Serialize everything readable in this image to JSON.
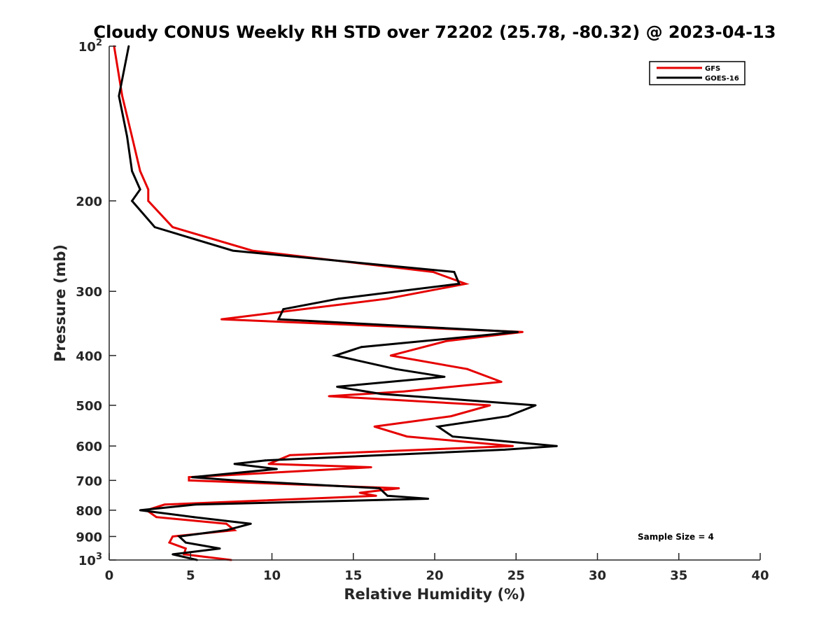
{
  "chart_data": {
    "type": "line",
    "title": "Cloudy CONUS Weekly RH STD over 72202 (25.78, -80.32) @ 2023-04-13",
    "xlabel": "Relative Humidity (%)",
    "ylabel": "Pressure (mb)",
    "xlim": [
      0,
      40
    ],
    "ylim": [
      100,
      1000
    ],
    "y_scale": "log",
    "y_reversed": true,
    "grid": false,
    "legend_placement": "top-right",
    "x_ticks": [
      "0",
      "5",
      "10",
      "15",
      "20",
      "25",
      "30",
      "35",
      "40"
    ],
    "y_ticks": [
      {
        "value": 100,
        "base": "10",
        "exp": "2"
      },
      {
        "value": 200,
        "label": "200"
      },
      {
        "value": 300,
        "label": "300"
      },
      {
        "value": 400,
        "label": "400"
      },
      {
        "value": 500,
        "label": "500"
      },
      {
        "value": 600,
        "label": "600"
      },
      {
        "value": 700,
        "label": "700"
      },
      {
        "value": 800,
        "label": "800"
      },
      {
        "value": 900,
        "label": "900"
      },
      {
        "value": 1000,
        "base": "10",
        "exp": "3"
      }
    ],
    "series": [
      {
        "name": "GFS",
        "color": "#e60000",
        "points": [
          [
            0.3,
            100
          ],
          [
            0.8,
            125
          ],
          [
            1.4,
            150
          ],
          [
            1.9,
            175
          ],
          [
            2.4,
            190
          ],
          [
            2.4,
            200
          ],
          [
            3.9,
            225
          ],
          [
            8.8,
            250
          ],
          [
            19.9,
            275
          ],
          [
            21.9,
            290
          ],
          [
            17.1,
            310
          ],
          [
            6.9,
            340
          ],
          [
            25.4,
            360
          ],
          [
            20.7,
            375
          ],
          [
            17.3,
            400
          ],
          [
            22.0,
            425
          ],
          [
            24.1,
            450
          ],
          [
            18.1,
            470
          ],
          [
            13.5,
            480
          ],
          [
            23.4,
            500
          ],
          [
            21.0,
            525
          ],
          [
            16.3,
            550
          ],
          [
            18.3,
            575
          ],
          [
            24.8,
            600
          ],
          [
            11.1,
            625
          ],
          [
            9.8,
            650
          ],
          [
            16.1,
            660
          ],
          [
            4.9,
            690
          ],
          [
            4.9,
            700
          ],
          [
            17.8,
            725
          ],
          [
            15.4,
            740
          ],
          [
            16.4,
            750
          ],
          [
            3.4,
            780
          ],
          [
            2.3,
            800
          ],
          [
            2.9,
            825
          ],
          [
            7.2,
            850
          ],
          [
            7.7,
            875
          ],
          [
            3.9,
            900
          ],
          [
            3.7,
            925
          ],
          [
            4.7,
            950
          ],
          [
            4.6,
            975
          ],
          [
            7.5,
            1000
          ]
        ]
      },
      {
        "name": "GOES-16",
        "color": "#000000",
        "points": [
          [
            1.2,
            100
          ],
          [
            0.6,
            125
          ],
          [
            1.1,
            150
          ],
          [
            1.4,
            175
          ],
          [
            1.9,
            190
          ],
          [
            1.4,
            200
          ],
          [
            2.8,
            225
          ],
          [
            7.6,
            250
          ],
          [
            21.2,
            275
          ],
          [
            21.5,
            290
          ],
          [
            14.1,
            310
          ],
          [
            10.7,
            325
          ],
          [
            10.4,
            340
          ],
          [
            25.1,
            360
          ],
          [
            15.5,
            385
          ],
          [
            13.9,
            400
          ],
          [
            17.6,
            425
          ],
          [
            20.6,
            440
          ],
          [
            14.0,
            460
          ],
          [
            16.7,
            475
          ],
          [
            26.2,
            500
          ],
          [
            24.5,
            525
          ],
          [
            20.2,
            550
          ],
          [
            21.1,
            575
          ],
          [
            27.5,
            600
          ],
          [
            24.3,
            610
          ],
          [
            9.6,
            640
          ],
          [
            7.7,
            650
          ],
          [
            10.3,
            665
          ],
          [
            5.1,
            690
          ],
          [
            7.7,
            700
          ],
          [
            16.6,
            725
          ],
          [
            17.1,
            750
          ],
          [
            19.6,
            760
          ],
          [
            5.3,
            780
          ],
          [
            1.9,
            800
          ],
          [
            5.2,
            825
          ],
          [
            8.7,
            850
          ],
          [
            7.2,
            875
          ],
          [
            4.3,
            900
          ],
          [
            4.7,
            925
          ],
          [
            6.8,
            950
          ],
          [
            3.9,
            975
          ],
          [
            5.4,
            1000
          ]
        ]
      }
    ],
    "annotation": "Sample Size = 4"
  }
}
